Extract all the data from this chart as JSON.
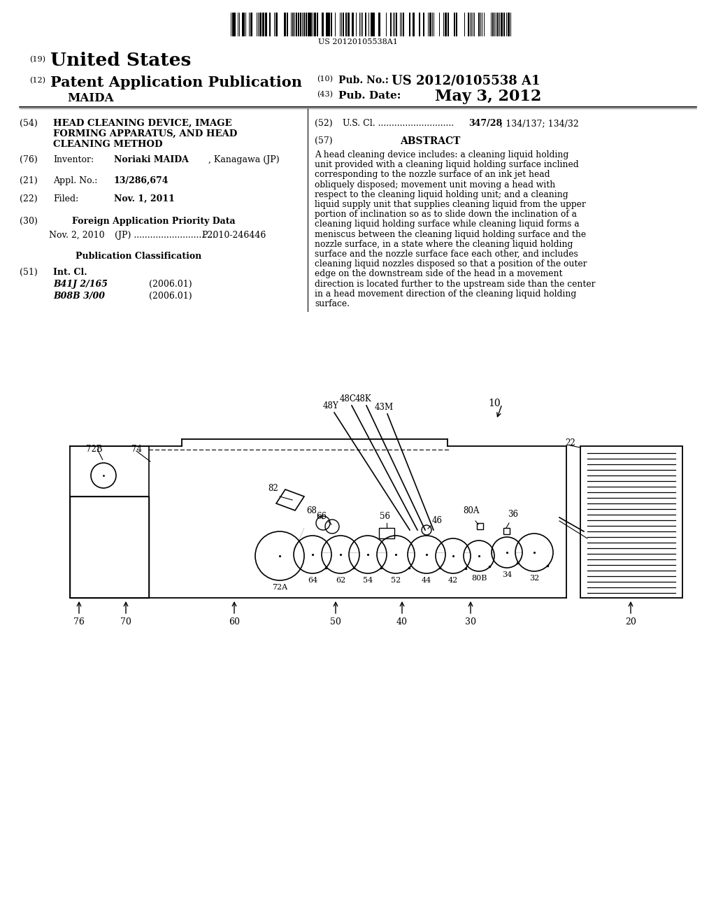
{
  "bg_color": "#ffffff",
  "barcode_text": "US 20120105538A1",
  "patent_number": "US 2012/0105538 A1",
  "pub_date": "May 3, 2012",
  "country": "United States",
  "pub_type": "Patent Application Publication",
  "inventor_label": "MAIDA",
  "title_text": "HEAD CLEANING DEVICE, IMAGE\nFORMING APPARATUS, AND HEAD\nCLEANING METHOD",
  "inventor_name": "Noriaki MAIDA, Kanagawa (JP)",
  "appl_no": "13/286,674",
  "filed_date": "Nov. 1, 2011",
  "foreign_date": "Nov. 2, 2010",
  "foreign_number": "P2010-246446",
  "int_cl1": "B41J 2/165",
  "int_cl1_date": "(2006.01)",
  "int_cl2": "B08B 3/00",
  "int_cl2_date": "(2006.01)",
  "us_cl_numbers": "347/28; 134/137; 134/32",
  "abstract_lines": [
    "A head cleaning device includes: a cleaning liquid holding",
    "unit provided with a cleaning liquid holding surface inclined",
    "corresponding to the nozzle surface of an ink jet head",
    "obliquely disposed; movement unit moving a head with",
    "respect to the cleaning liquid holding unit; and a cleaning",
    "liquid supply unit that supplies cleaning liquid from the upper",
    "portion of inclination so as to slide down the inclination of a",
    "cleaning liquid holding surface while cleaning liquid forms a",
    "meniscus between the cleaning liquid holding surface and the",
    "nozzle surface, in a state where the cleaning liquid holding",
    "surface and the nozzle surface face each other, and includes",
    "cleaning liquid nozzles disposed so that a position of the outer",
    "edge on the downstream side of the head in a movement",
    "direction is located further to the upstream side than the center",
    "in a head movement direction of the cleaning liquid holding",
    "surface."
  ]
}
